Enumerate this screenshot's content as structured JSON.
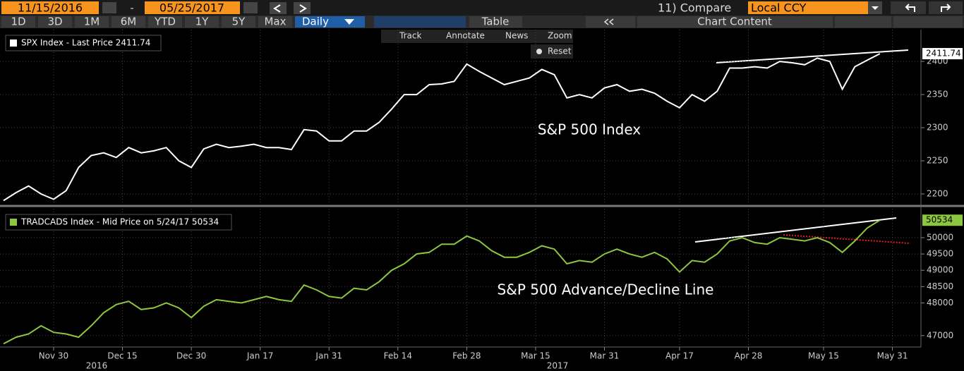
{
  "toolbar": {
    "start_date": "11/15/2016",
    "separator": "-",
    "end_date": "05/25/2017",
    "ranges": [
      "1D",
      "3D",
      "1M",
      "6M",
      "YTD",
      "1Y",
      "5Y",
      "Max"
    ],
    "frequency": "Daily",
    "table": "Table",
    "compare": "11) Compare",
    "currency": "Local CCY",
    "chart_content": "Chart Content",
    "tools": [
      "Track",
      "Annotate",
      "News",
      "Zoom"
    ],
    "reset": "Reset"
  },
  "chart_data": [
    {
      "type": "line",
      "annotation": "S&P 500 Index",
      "x": [
        0,
        2,
        4,
        6,
        8,
        10,
        12,
        14,
        16,
        18,
        20,
        22,
        24,
        26,
        28,
        30,
        32,
        34,
        36,
        38,
        40,
        42,
        44,
        46,
        48,
        50,
        52,
        54,
        56,
        58,
        60,
        62,
        64,
        66,
        68,
        70,
        72,
        74,
        76,
        78,
        80,
        82,
        84,
        86,
        88,
        90,
        92,
        94,
        96,
        98,
        100,
        102,
        104,
        106,
        108,
        110,
        112,
        114,
        116,
        118,
        120,
        122,
        124,
        126,
        128,
        130,
        132,
        134,
        136,
        138,
        140
      ],
      "xlim": [
        0,
        146
      ],
      "series": [
        {
          "name": "SPX Index - Last Price 2411.74",
          "color": "#ffffff",
          "values": [
            2190,
            2202,
            2212,
            2200,
            2192,
            2205,
            2240,
            2258,
            2262,
            2255,
            2270,
            2262,
            2265,
            2270,
            2250,
            2240,
            2268,
            2275,
            2270,
            2272,
            2275,
            2270,
            2270,
            2267,
            2297,
            2295,
            2280,
            2280,
            2295,
            2295,
            2308,
            2328,
            2350,
            2350,
            2365,
            2366,
            2370,
            2396,
            2385,
            2375,
            2365,
            2370,
            2375,
            2388,
            2380,
            2345,
            2350,
            2345,
            2360,
            2365,
            2355,
            2358,
            2352,
            2340,
            2330,
            2350,
            2340,
            2355,
            2390,
            2390,
            2392,
            2390,
            2400,
            2398,
            2395,
            2405,
            2400,
            2358,
            2392,
            2402,
            2411.74
          ]
        }
      ],
      "ylim": [
        2184,
        2448
      ],
      "yticks": [
        2200,
        2250,
        2300,
        2350,
        2400
      ],
      "grid": true
    },
    {
      "type": "line",
      "annotation": "S&P 500 Advance/Decline Line",
      "x": [
        0,
        2,
        4,
        6,
        8,
        10,
        12,
        14,
        16,
        18,
        20,
        22,
        24,
        26,
        28,
        30,
        32,
        34,
        36,
        38,
        40,
        42,
        44,
        46,
        48,
        50,
        52,
        54,
        56,
        58,
        60,
        62,
        64,
        66,
        68,
        70,
        72,
        74,
        76,
        78,
        80,
        82,
        84,
        86,
        88,
        90,
        92,
        94,
        96,
        98,
        100,
        102,
        104,
        106,
        108,
        110,
        112,
        114,
        116,
        118,
        120,
        122,
        124,
        126,
        128,
        130,
        132,
        134,
        136,
        138,
        140
      ],
      "xlim": [
        0,
        146
      ],
      "xticks": [
        {
          "value": 8,
          "label": "Nov 30"
        },
        {
          "value": 19,
          "label": "Dec 15"
        },
        {
          "value": 30,
          "label": "Dec 30"
        },
        {
          "value": 41,
          "label": "Jan 17"
        },
        {
          "value": 52,
          "label": "Jan 31"
        },
        {
          "value": 63,
          "label": "Feb 14"
        },
        {
          "value": 74,
          "label": "Feb 28"
        },
        {
          "value": 85,
          "label": "Mar 15"
        },
        {
          "value": 96,
          "label": "Mar 31"
        },
        {
          "value": 108,
          "label": "Apr 17"
        },
        {
          "value": 119,
          "label": "Apr 28"
        },
        {
          "value": 131,
          "label": "May 15"
        },
        {
          "value": 142,
          "label": "May 31"
        }
      ],
      "years": [
        "2016",
        "2017"
      ],
      "series": [
        {
          "name": "TRADCADS Index - Mid Price on 5/24/17 50534",
          "color": "#8dc63f",
          "values": [
            46750,
            46950,
            47050,
            47300,
            47100,
            47050,
            46950,
            47300,
            47700,
            47950,
            48050,
            47800,
            47850,
            48000,
            47850,
            47550,
            47900,
            48100,
            48050,
            48000,
            48100,
            48200,
            48100,
            48050,
            48550,
            48400,
            48200,
            48150,
            48450,
            48400,
            48650,
            49000,
            49200,
            49500,
            49550,
            49800,
            49800,
            50050,
            49900,
            49600,
            49400,
            49400,
            49550,
            49750,
            49650,
            49200,
            49300,
            49250,
            49500,
            49650,
            49500,
            49400,
            49550,
            49350,
            48950,
            49300,
            49250,
            49500,
            49900,
            50000,
            49850,
            49800,
            50000,
            49950,
            49900,
            50000,
            49850,
            49550,
            49900,
            50300,
            50534
          ]
        }
      ],
      "ylim": [
        46650,
        50885
      ],
      "yticks": [
        47000,
        48000,
        48500,
        49000,
        49500,
        50000
      ],
      "grid": true
    }
  ]
}
